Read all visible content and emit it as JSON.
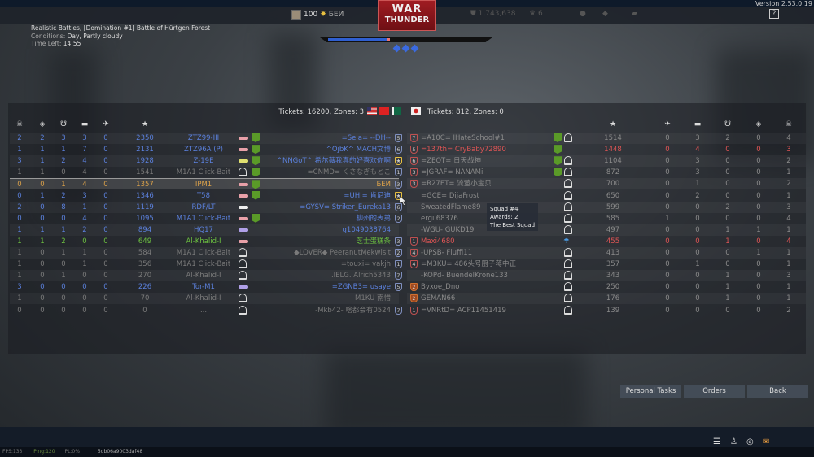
{
  "header": {
    "version": "Version 2.53.0.19",
    "balance": "100",
    "player_tag": "БЕИ",
    "logo_line1": "WAR",
    "logo_line2": "THUNDER",
    "lions": "1,743,638",
    "stat2": "6",
    "help": "?"
  },
  "mission": {
    "title": "Realistic Battles, [Domination #1] Battle of Hürtgen Forest",
    "conditions_label": "Conditions:",
    "conditions": "Day, Partly cloudy",
    "time_label": "Time Left:",
    "time": "14:55"
  },
  "progress": {
    "ally_fraction": 0.52
  },
  "teams": {
    "ally_tickets": "Tickets: 16200, Zones: 3",
    "enemy_tickets": "Tickets: 812, Zones: 0",
    "ally_flags": [
      "usa",
      "china",
      "pakistan"
    ],
    "enemy_flags": [
      "japan"
    ]
  },
  "columns_left": [
    "skull-icon",
    "capture-icon",
    "assist-icon",
    "tank-icon",
    "plane-icon",
    "star-icon"
  ],
  "columns_right": [
    "star-icon",
    "plane-icon",
    "tank-icon",
    "assist-icon",
    "capture-icon",
    "skull-icon"
  ],
  "colors": {
    "ally": "#5b80dc",
    "dead": "#7a7a7a",
    "me": "#d9a04a",
    "squad": "#6cc040",
    "enemy_squad": "#e05555",
    "enemy": "#8a8a8a"
  },
  "ally_rows": [
    [
      "2",
      "2",
      "3",
      "3",
      "0",
      "2350",
      "ZTZ99-III",
      "=Seia= --DH--",
      "5",
      "ally",
      "tank"
    ],
    [
      "1",
      "1",
      "1",
      "7",
      "0",
      "2131",
      "ZTZ96A (P)",
      "^OjbK^ MACH文博",
      "6",
      "ally",
      "tank"
    ],
    [
      "3",
      "1",
      "2",
      "4",
      "0",
      "1928",
      "Z-19E",
      "^NNGoT^ 希尔薇我真的好喜欢你啊",
      "★",
      "ally",
      "heli"
    ],
    [
      "1",
      "1",
      "0",
      "4",
      "0",
      "1541",
      "M1A1 Click-Bait",
      "=CNMD= くさなぎもとこ",
      "1",
      "dead",
      "dead"
    ],
    [
      "0",
      "0",
      "1",
      "4",
      "0",
      "1357",
      "IPM1",
      "БЕИ",
      "3",
      "me",
      "tank"
    ],
    [
      "0",
      "1",
      "2",
      "3",
      "0",
      "1346",
      "T58",
      "=UHI= 肯尼迪",
      "★",
      "ally",
      "tank"
    ],
    [
      "2",
      "0",
      "8",
      "1",
      "0",
      "1119",
      "RDF/LT",
      "=GYSV= Striker_Eureka13",
      "6",
      "ally",
      "tankw"
    ],
    [
      "0",
      "0",
      "0",
      "4",
      "0",
      "1095",
      "M1A1 Click-Bait",
      "柳州的表弟",
      "2",
      "ally",
      "tank"
    ],
    [
      "1",
      "1",
      "1",
      "2",
      "0",
      "894",
      "HQ17",
      "q1049038764",
      "",
      "ally",
      "aa"
    ],
    [
      "1",
      "1",
      "2",
      "0",
      "0",
      "649",
      "Al-Khalid-I",
      "芝士蛋糕条",
      "3",
      "squad",
      "tank"
    ],
    [
      "1",
      "0",
      "1",
      "1",
      "0",
      "584",
      "M1A1 Click-Bait",
      "◆LOVER◆ PeeranutMekwisit",
      "2",
      "dead",
      "dead"
    ],
    [
      "1",
      "0",
      "0",
      "1",
      "0",
      "356",
      "M1A1 Click-Bait",
      "=touxi= vakjh",
      "1",
      "dead",
      "dead"
    ],
    [
      "1",
      "0",
      "1",
      "0",
      "0",
      "270",
      "Al-Khalid-I",
      ".IELG. Alrich5343",
      "7",
      "dead",
      "dead"
    ],
    [
      "3",
      "0",
      "0",
      "0",
      "0",
      "226",
      "Tor-M1",
      "=ZGNB3= usaye",
      "5",
      "ally",
      "aa"
    ],
    [
      "1",
      "0",
      "0",
      "0",
      "0",
      "70",
      "Al-Khalid-I",
      "M1KU 南惜",
      "",
      "dead",
      "dead"
    ],
    [
      "0",
      "0",
      "0",
      "0",
      "0",
      "0",
      "...",
      "-Mkb42- 啥都会有0524",
      "7",
      "dead",
      "dead"
    ]
  ],
  "enemy_rows": [
    [
      "7",
      "=A10C= IHateSchool#1",
      "1514",
      "0",
      "3",
      "2",
      "0",
      "4",
      "enemy",
      "dead"
    ],
    [
      "5",
      "=137th= CryBaby72890",
      "1448",
      "0",
      "4",
      "0",
      "0",
      "3",
      "enemy_squad",
      ""
    ],
    [
      "6",
      "=ZEOT= 日天战神",
      "1104",
      "0",
      "3",
      "0",
      "0",
      "2",
      "enemy",
      "dead"
    ],
    [
      "3",
      "=JGRAF= NANAMi",
      "872",
      "0",
      "3",
      "0",
      "0",
      "1",
      "enemy",
      "dead"
    ],
    [
      "3",
      "=R27ET= 流萤小宝贝",
      "700",
      "0",
      "1",
      "0",
      "0",
      "2",
      "enemy",
      "dead"
    ],
    [
      "",
      "=GCE= DijaFrost",
      "650",
      "0",
      "2",
      "0",
      "0",
      "1",
      "enemy",
      "dead"
    ],
    [
      "",
      "SweatedFlame89",
      "599",
      "0",
      "0",
      "2",
      "0",
      "3",
      "enemy",
      "dead"
    ],
    [
      "",
      "ergil68376",
      "585",
      "1",
      "0",
      "0",
      "0",
      "4",
      "enemy",
      "dead"
    ],
    [
      "",
      "-WGU- GUKD19",
      "497",
      "0",
      "0",
      "1",
      "1",
      "1",
      "enemy",
      "dead"
    ],
    [
      "1",
      "Maxi4680",
      "455",
      "0",
      "0",
      "1",
      "0",
      "4",
      "enemy_squad",
      "para"
    ],
    [
      "4",
      "-UPSB- Fluffi11",
      "413",
      "0",
      "0",
      "0",
      "1",
      "1",
      "enemy",
      "dead"
    ],
    [
      "4",
      "=M3KU= 486头号厨子蒋中正",
      "357",
      "0",
      "1",
      "0",
      "0",
      "1",
      "enemy",
      "dead"
    ],
    [
      "",
      "-KOPd- BuendelKrone133",
      "343",
      "0",
      "0",
      "1",
      "0",
      "3",
      "enemy",
      "dead"
    ],
    [
      "2",
      "Byxoe_Dno",
      "250",
      "0",
      "0",
      "1",
      "0",
      "1",
      "enemy",
      "dead"
    ],
    [
      "2",
      "GEMAN66",
      "176",
      "0",
      "0",
      "1",
      "0",
      "1",
      "enemy",
      "dead"
    ],
    [
      "1",
      "=VNRtD= ACP11451419",
      "139",
      "0",
      "0",
      "0",
      "0",
      "2",
      "enemy",
      "dead"
    ]
  ],
  "tooltip": {
    "line1": "Squad #4",
    "line2": "Awards: 2",
    "line3": "The Best Squad"
  },
  "buttons": {
    "personal_tasks": "Personal Tasks",
    "orders": "Orders",
    "back": "Back"
  },
  "footer": {
    "fps": "FPS:133",
    "ping": "Ping:120",
    "pl": "PL:0%",
    "session": "5db06a9003daf48"
  }
}
